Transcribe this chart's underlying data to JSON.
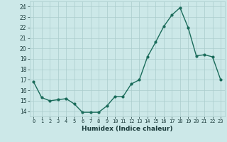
{
  "x": [
    0,
    1,
    2,
    3,
    4,
    5,
    6,
    7,
    8,
    9,
    10,
    11,
    12,
    13,
    14,
    15,
    16,
    17,
    18,
    19,
    20,
    21,
    22,
    23
  ],
  "y": [
    16.8,
    15.3,
    15.0,
    15.1,
    15.2,
    14.7,
    13.9,
    13.9,
    13.9,
    14.5,
    15.4,
    15.4,
    16.6,
    17.0,
    19.2,
    20.6,
    22.1,
    23.2,
    23.9,
    22.0,
    19.3,
    19.4,
    19.2,
    17.0
  ],
  "xlabel": "Humidex (Indice chaleur)",
  "xlim": [
    -0.5,
    23.5
  ],
  "ylim": [
    13.5,
    24.5
  ],
  "yticks": [
    14,
    15,
    16,
    17,
    18,
    19,
    20,
    21,
    22,
    23,
    24
  ],
  "xticks": [
    0,
    1,
    2,
    3,
    4,
    5,
    6,
    7,
    8,
    9,
    10,
    11,
    12,
    13,
    14,
    15,
    16,
    17,
    18,
    19,
    20,
    21,
    22,
    23
  ],
  "line_color": "#1a6b5a",
  "bg_color": "#cce8e8",
  "grid_color": "#aacccc",
  "markersize": 2.0,
  "linewidth": 1.0
}
